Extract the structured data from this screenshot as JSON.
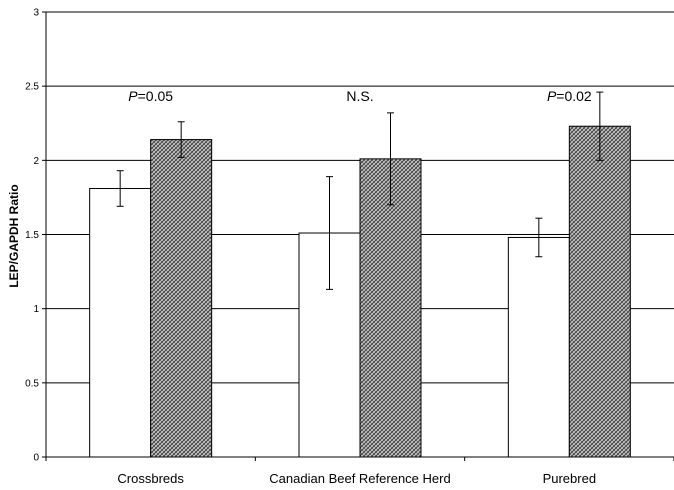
{
  "chart_data": {
    "type": "bar",
    "ylabel": "LEP/GAPDH Ratio",
    "xlabel": "",
    "ylim": [
      0,
      3
    ],
    "yticks": [
      "0",
      "0.5",
      "1",
      "1.5",
      "2",
      "2.5",
      "3"
    ],
    "yticks_values": [
      0,
      0.5,
      1,
      1.5,
      2,
      2.5,
      3
    ],
    "grid": true,
    "legend": "none",
    "categories": [
      "Crossbreds",
      "Canadian Beef Reference Herd",
      "Purebred"
    ],
    "series": [
      {
        "fill": "#ffffff",
        "values": [
          1.81,
          1.51,
          1.48
        ],
        "err": [
          0.12,
          0.38,
          0.13
        ]
      },
      {
        "fill": "#8a8a8a",
        "pattern": "crosshatch",
        "values": [
          2.14,
          2.01,
          2.23
        ],
        "err": [
          0.12,
          0.31,
          0.23
        ]
      }
    ],
    "annotations": [
      {
        "category": 0,
        "italic": "P",
        "text": "=0.05"
      },
      {
        "category": 1,
        "italic": "",
        "text": "N.S."
      },
      {
        "category": 2,
        "italic": "P",
        "text": "=0.02"
      }
    ]
  }
}
